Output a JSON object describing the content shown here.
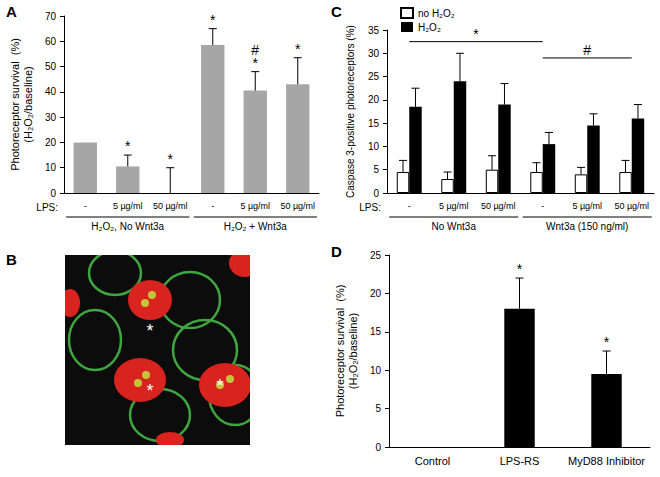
{
  "chart_data": [
    {
      "panel": "A",
      "type": "bar",
      "y_label": "Photoreceptor survival  (%)\n(H₂O₂/baseline)",
      "x_label": "LPS:",
      "categories": [
        "-",
        "5 µg/ml",
        "50 µg/ml",
        "-",
        "5 µg/ml",
        "50 µg/ml"
      ],
      "groups": [
        {
          "label": "H₂O₂, No Wnt3a",
          "size": 3
        },
        {
          "label": "H₂O₂ + Wnt3a",
          "size": 3
        }
      ],
      "values": [
        20,
        10.5,
        0,
        58.5,
        40.5,
        43
      ],
      "errors": [
        null,
        4.5,
        10,
        6.5,
        7.5,
        10.5
      ],
      "markers": [
        null,
        [
          "*"
        ],
        [
          "*"
        ],
        [
          "*"
        ],
        [
          "*",
          "#"
        ],
        [
          "*"
        ]
      ],
      "color": "#a6a6a6",
      "ylim": [
        0,
        70
      ],
      "yticks": [
        0,
        10,
        20,
        30,
        40,
        50,
        60,
        70
      ],
      "grid": false
    },
    {
      "panel": "B",
      "type": "image",
      "annotations": [
        "*",
        "*",
        "*"
      ]
    },
    {
      "panel": "C",
      "type": "bar",
      "y_label": "Caspase 3-positive photoreceptors (%)",
      "x_label": "LPS:",
      "categories": [
        "-",
        "5 µg/ml",
        "50 µg/ml",
        "-",
        "5 µg/ml",
        "50 µg/ml"
      ],
      "groups": [
        {
          "label": "No Wnt3a",
          "size": 3
        },
        {
          "label": "Wnt3a (150 ng/ml)",
          "size": 3
        }
      ],
      "series": [
        {
          "name": "no H₂O₂",
          "color": "#ffffff",
          "values": [
            4.5,
            3,
            5,
            4.5,
            4,
            4.5
          ],
          "errors": [
            2.5,
            1.5,
            3,
            2,
            1.5,
            2.5
          ]
        },
        {
          "name": "H₂O₂",
          "color": "#000000",
          "values": [
            18.5,
            24,
            19,
            10.5,
            14.5,
            16
          ],
          "errors": [
            4,
            6,
            4.5,
            2.5,
            2.5,
            3
          ]
        }
      ],
      "brackets": [
        {
          "label": "*",
          "from": 0,
          "to": 3,
          "y": 32.5
        },
        {
          "label": "#",
          "from": 3,
          "to": 5,
          "y": 29
        }
      ],
      "legend": "top-left",
      "ylim": [
        0,
        35
      ],
      "yticks": [
        0,
        5,
        10,
        15,
        20,
        25,
        30,
        35
      ],
      "grid": false
    },
    {
      "panel": "D",
      "type": "bar",
      "y_label": "Photoreceptor survival  (%)\n(H₂O₂/baseline)",
      "categories": [
        "Control",
        "LPS-RS",
        "MyD88 Inhibitor"
      ],
      "values": [
        0,
        18,
        9.5
      ],
      "errors": [
        null,
        4,
        3
      ],
      "markers": [
        null,
        [
          "*"
        ],
        [
          "*"
        ]
      ],
      "color": "#000000",
      "ylim": [
        0,
        25
      ],
      "yticks": [
        0,
        5,
        10,
        15,
        20,
        25
      ],
      "grid": false
    }
  ]
}
